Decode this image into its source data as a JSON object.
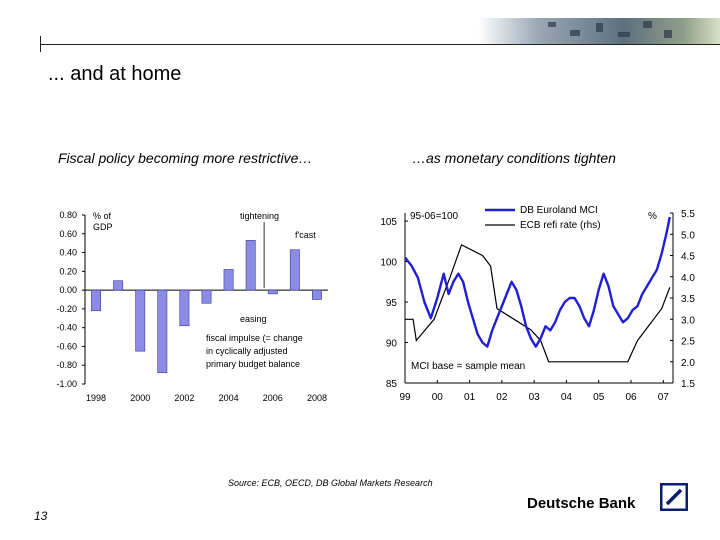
{
  "slide": {
    "title": "... and at home",
    "page_number": "13",
    "source": "Source: ECB, OECD, DB Global Markets Research",
    "brand": "Deutsche Bank"
  },
  "left_panel": {
    "subtitle": "Fiscal policy becoming more restrictive…"
  },
  "right_panel": {
    "subtitle": "…as monetary conditions tighten"
  },
  "colors": {
    "bar_fill": "#8c8ce6",
    "bar_edge": "#3a3aa0",
    "mci_line": "#1f1fd6",
    "refi_line": "#000000"
  },
  "chart_data": [
    {
      "type": "bar",
      "categories": [
        "1998",
        "1999",
        "2000",
        "2001",
        "2002",
        "2003",
        "2004",
        "2005",
        "2006",
        "2007",
        "2008"
      ],
      "values": [
        -0.22,
        0.1,
        -0.65,
        -0.88,
        -0.38,
        -0.14,
        0.22,
        0.53,
        -0.04,
        0.43,
        -0.1
      ],
      "xticks": [
        "1998",
        "2000",
        "2002",
        "2004",
        "2006",
        "2008"
      ],
      "yticks": [
        "0.80",
        "0.60",
        "0.40",
        "0.20",
        "0.00",
        "-0.20",
        "-0.40",
        "-0.60",
        "-0.80",
        "-1.00"
      ],
      "ylim": [
        -1.0,
        0.8
      ],
      "ylabel": "% of GDP",
      "annotations": {
        "tightening": "tightening",
        "forecast": "f'cast",
        "easing": "easing",
        "note": [
          "fiscal impulse (= change",
          "in cyclically adjusted",
          "primary budget balance"
        ]
      },
      "grid": false
    },
    {
      "type": "line",
      "x_ticks": [
        "99",
        "00",
        "01",
        "02",
        "03",
        "04",
        "05",
        "06",
        "07"
      ],
      "x_range": [
        1999.0,
        2007.3
      ],
      "left_axis": {
        "label": "95-06=100",
        "ticks": [
          "105",
          "100",
          "95",
          "90",
          "85"
        ],
        "range": [
          85,
          106
        ]
      },
      "right_axis": {
        "label": "%",
        "ticks": [
          "5.5",
          "5.0",
          "4.5",
          "4.0",
          "3.5",
          "3.0",
          "2.5",
          "2.0",
          "1.5"
        ],
        "range": [
          1.5,
          5.5
        ]
      },
      "legend": {
        "placement": "top-center",
        "entries": [
          "DB Euroland MCI",
          "ECB refi rate (rhs)"
        ]
      },
      "annotation": "MCI base = sample mean",
      "series": [
        {
          "name": "DB Euroland MCI",
          "axis": "left",
          "x": [
            1999.0,
            1999.2,
            1999.4,
            1999.6,
            1999.8,
            2000.0,
            2000.2,
            2000.35,
            2000.5,
            2000.65,
            2000.8,
            2000.95,
            2001.1,
            2001.25,
            2001.4,
            2001.55,
            2001.7,
            2001.85,
            2002.0,
            2002.15,
            2002.3,
            2002.45,
            2002.6,
            2002.75,
            2002.9,
            2003.05,
            2003.2,
            2003.35,
            2003.5,
            2003.65,
            2003.8,
            2003.95,
            2004.1,
            2004.25,
            2004.4,
            2004.55,
            2004.7,
            2004.85,
            2005.0,
            2005.15,
            2005.3,
            2005.45,
            2005.6,
            2005.75,
            2005.9,
            2006.05,
            2006.2,
            2006.35,
            2006.5,
            2006.65,
            2006.8,
            2006.95,
            2007.1,
            2007.2
          ],
          "values": [
            100.5,
            99.5,
            98.0,
            95.0,
            93.0,
            95.5,
            98.5,
            96.0,
            97.5,
            98.5,
            97.5,
            95.0,
            93.0,
            91.0,
            90.0,
            89.5,
            91.5,
            93.0,
            94.5,
            96.0,
            97.5,
            96.5,
            94.5,
            92.0,
            90.5,
            89.5,
            90.5,
            92.0,
            91.5,
            92.5,
            94.0,
            95.0,
            95.5,
            95.5,
            94.5,
            93.0,
            92.0,
            94.0,
            96.5,
            98.5,
            97.0,
            94.5,
            93.5,
            92.5,
            93.0,
            94.0,
            94.5,
            96.0,
            97.0,
            98.0,
            99.0,
            101.0,
            103.5,
            105.5
          ]
        },
        {
          "name": "ECB refi rate (rhs)",
          "axis": "right",
          "x": [
            1999.0,
            1999.25,
            1999.35,
            1999.9,
            2000.15,
            2000.4,
            2000.75,
            2001.4,
            2001.65,
            2001.85,
            2002.9,
            2003.2,
            2003.45,
            2005.9,
            2006.2,
            2006.45,
            2006.7,
            2006.95,
            2007.2
          ],
          "values": [
            3.0,
            3.0,
            2.5,
            3.0,
            3.5,
            4.0,
            4.75,
            4.5,
            4.25,
            3.25,
            2.75,
            2.5,
            2.0,
            2.0,
            2.5,
            2.75,
            3.0,
            3.25,
            3.75
          ]
        }
      ],
      "grid": false
    }
  ]
}
